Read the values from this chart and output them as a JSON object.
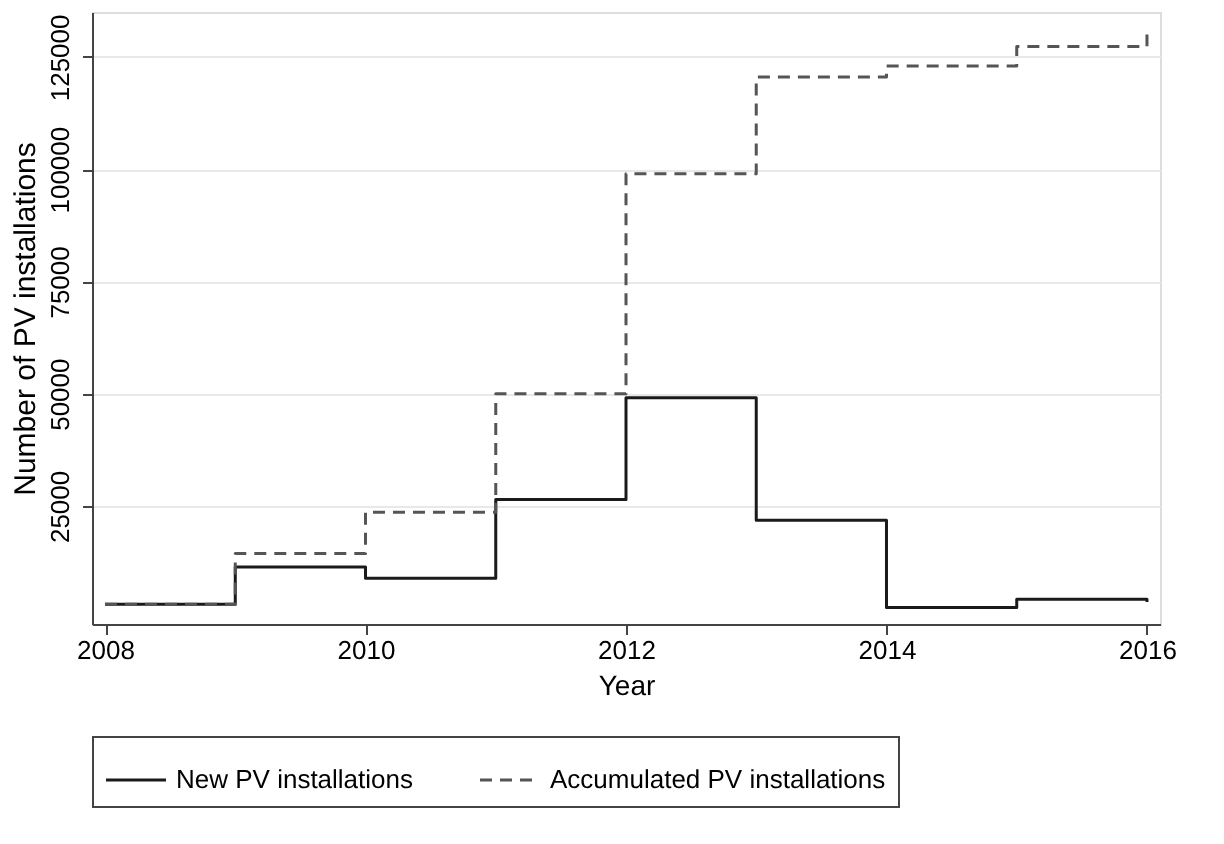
{
  "chart_data": {
    "type": "step",
    "xlabel": "Year",
    "ylabel": "Number of PV installations",
    "x": [
      2008,
      2009,
      2010,
      2011,
      2012,
      2013,
      2014,
      2015,
      2016
    ],
    "series": [
      {
        "name": "New PV installations",
        "color": "#1a1a1a",
        "line_style": "solid",
        "values": [
          3100,
          11400,
          8900,
          26400,
          49100,
          21800,
          2400,
          4200,
          3600
        ]
      },
      {
        "name": "Accumulated PV installations",
        "color": "#555555",
        "line_style": "dashed",
        "values": [
          3100,
          14400,
          23600,
          50000,
          99000,
          120500,
          123000,
          127300,
          130000
        ]
      }
    ],
    "xlim": [
      2007.9,
      2016.1
    ],
    "xticks": [
      2008,
      2010,
      2012,
      2014,
      2016
    ],
    "ylim": [
      -1300,
      135000
    ],
    "yticks": [
      25000,
      50000,
      75000,
      100000,
      125000
    ],
    "grid": "y",
    "legend": "bottom",
    "marker": "none"
  }
}
